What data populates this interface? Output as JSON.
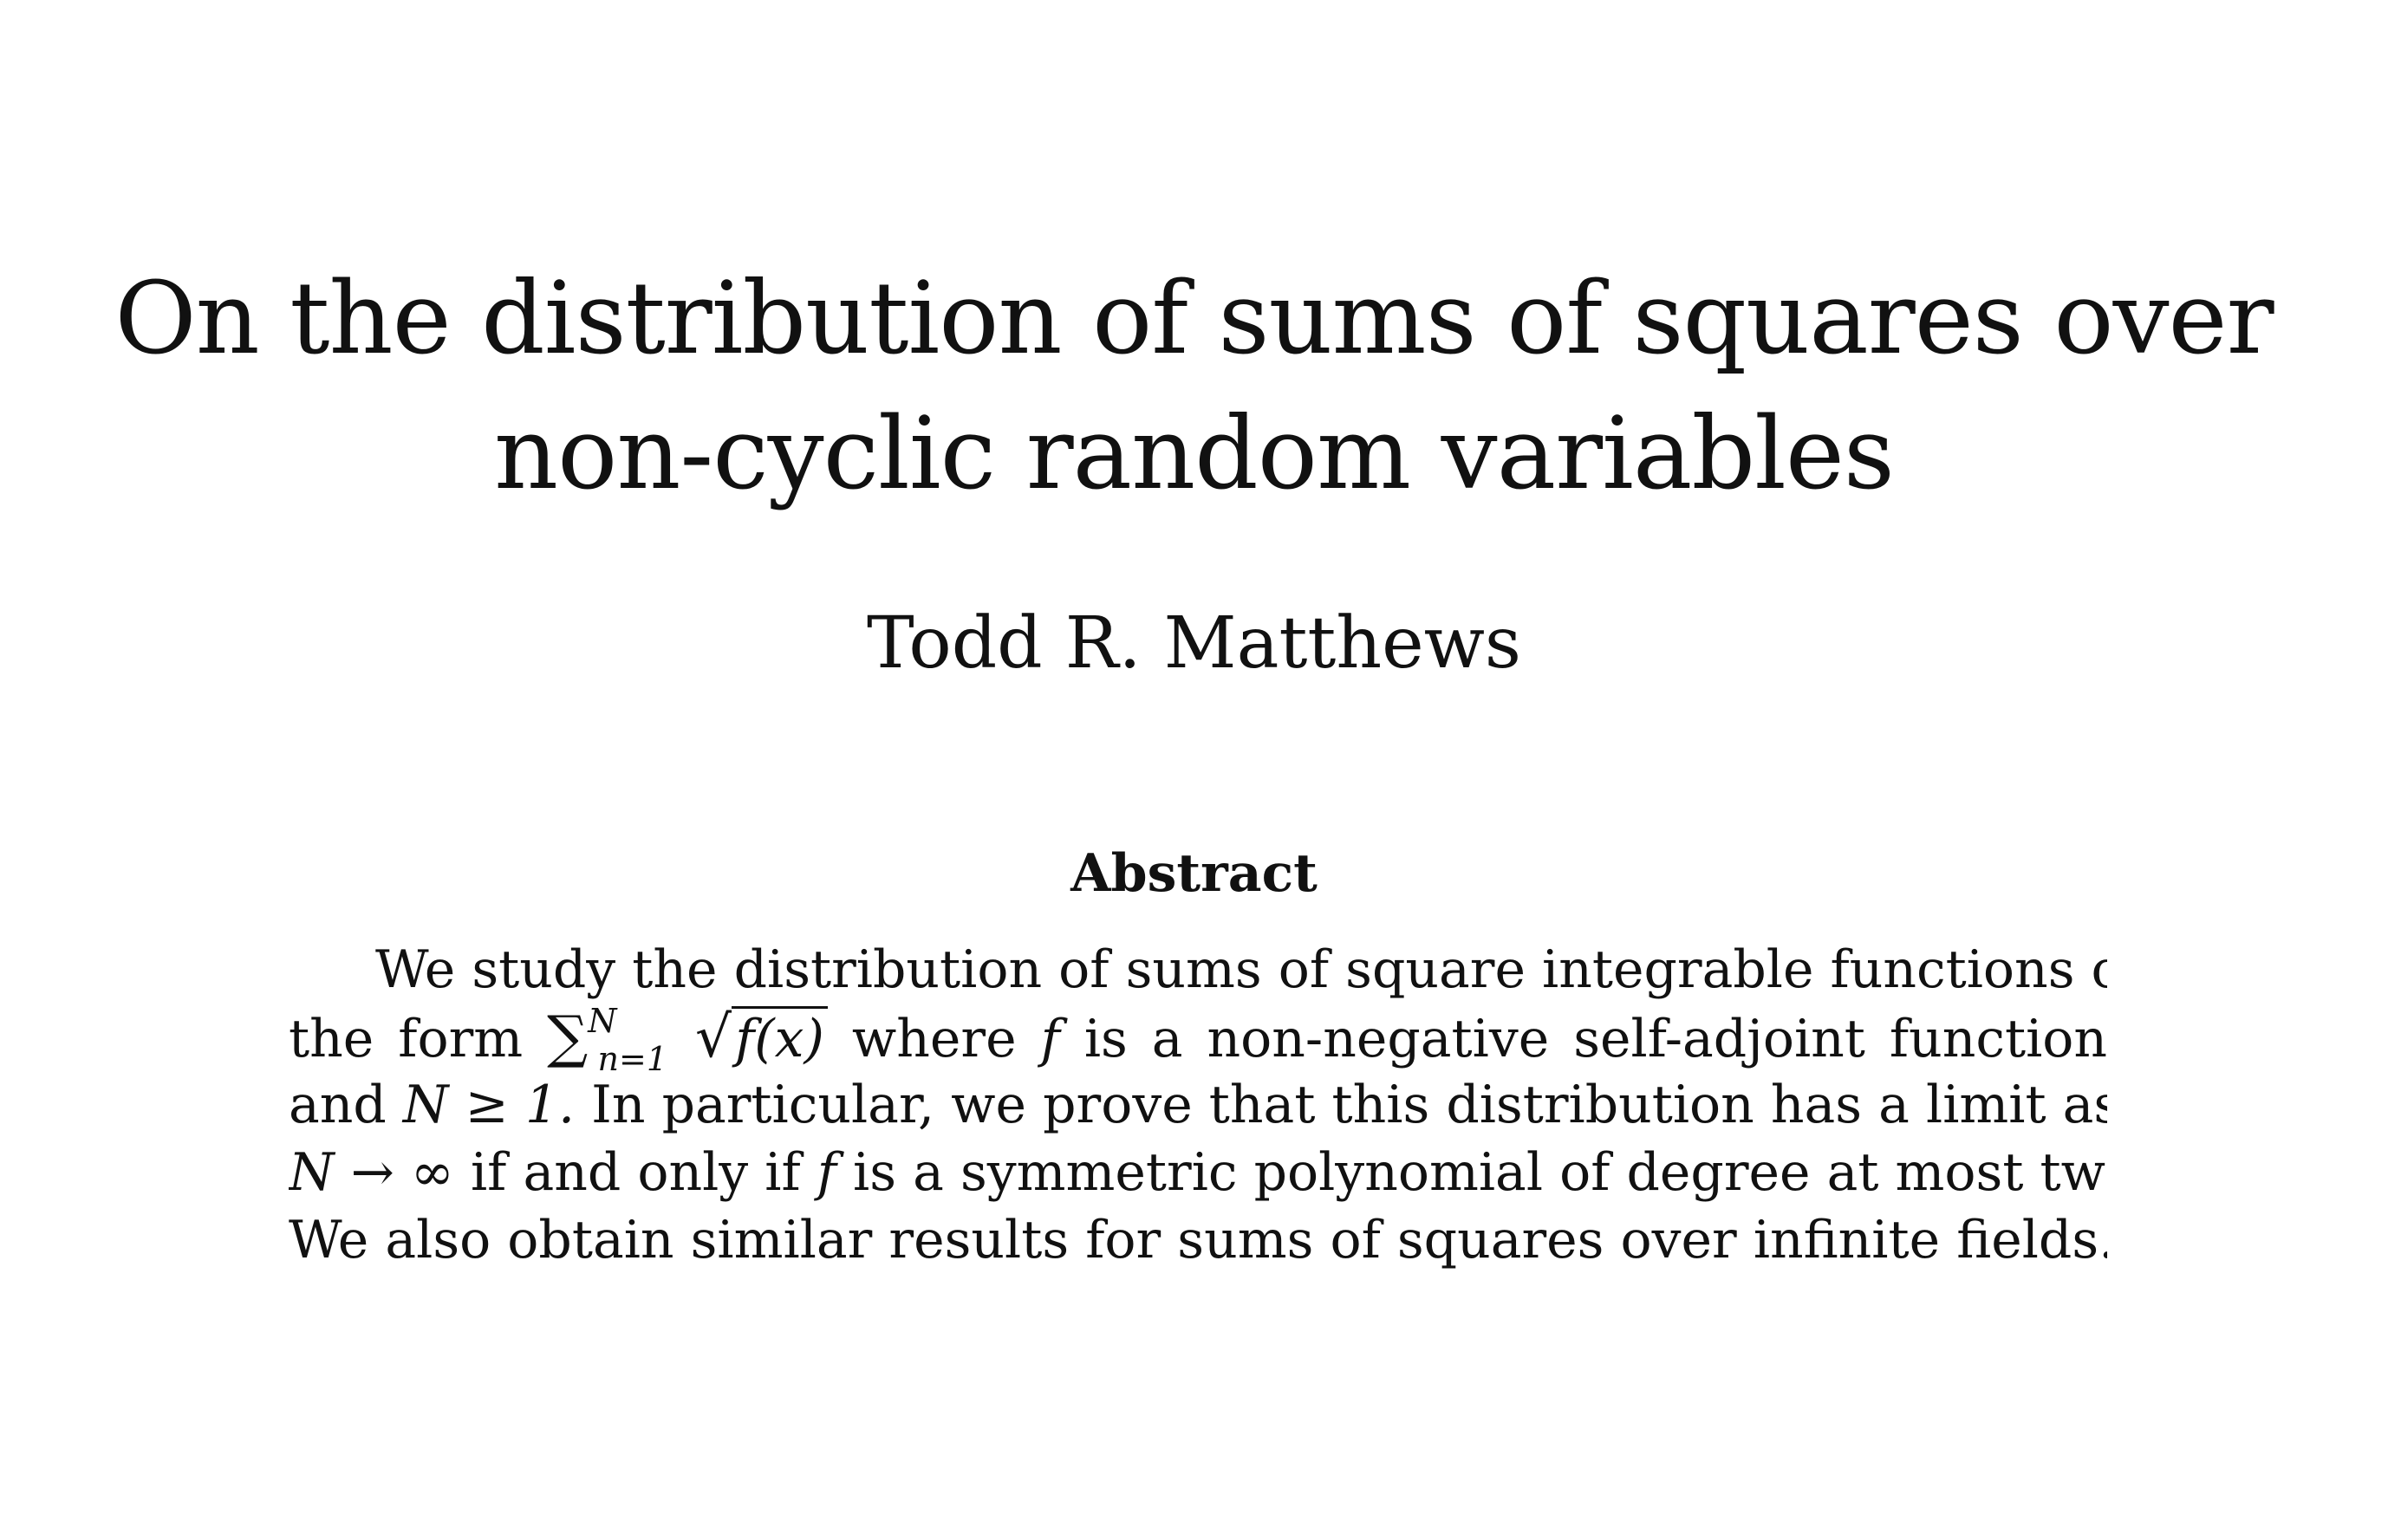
{
  "title": {
    "line1": "On the distribution of sums of squares over",
    "line2": "non-cyclic random variables"
  },
  "author": "Todd R. Matthews",
  "abstract": {
    "heading": "Abstract",
    "line1": "We study the distribution of sums of square integrable functions of",
    "line2_a": "the form",
    "line2_sum": "∑",
    "line2_sup": "N",
    "line2_sub": "n=1",
    "line2_sqrt": "√",
    "line2_radicand": "f(x)",
    "line2_b": "where",
    "line2_f": "f",
    "line2_c": "is a non-negative self-adjoint function",
    "line3_a": "and",
    "line3_math": "N ≥ 1.",
    "line3_b": "In particular, we prove that this distribution has a limit as",
    "line4_math": "N → ∞",
    "line4_a": "if and only if",
    "line4_f": "f",
    "line4_b": "is a symmetric polynomial of degree at most two.",
    "line5": "We also obtain similar results for sums of squares over infinite fields."
  }
}
